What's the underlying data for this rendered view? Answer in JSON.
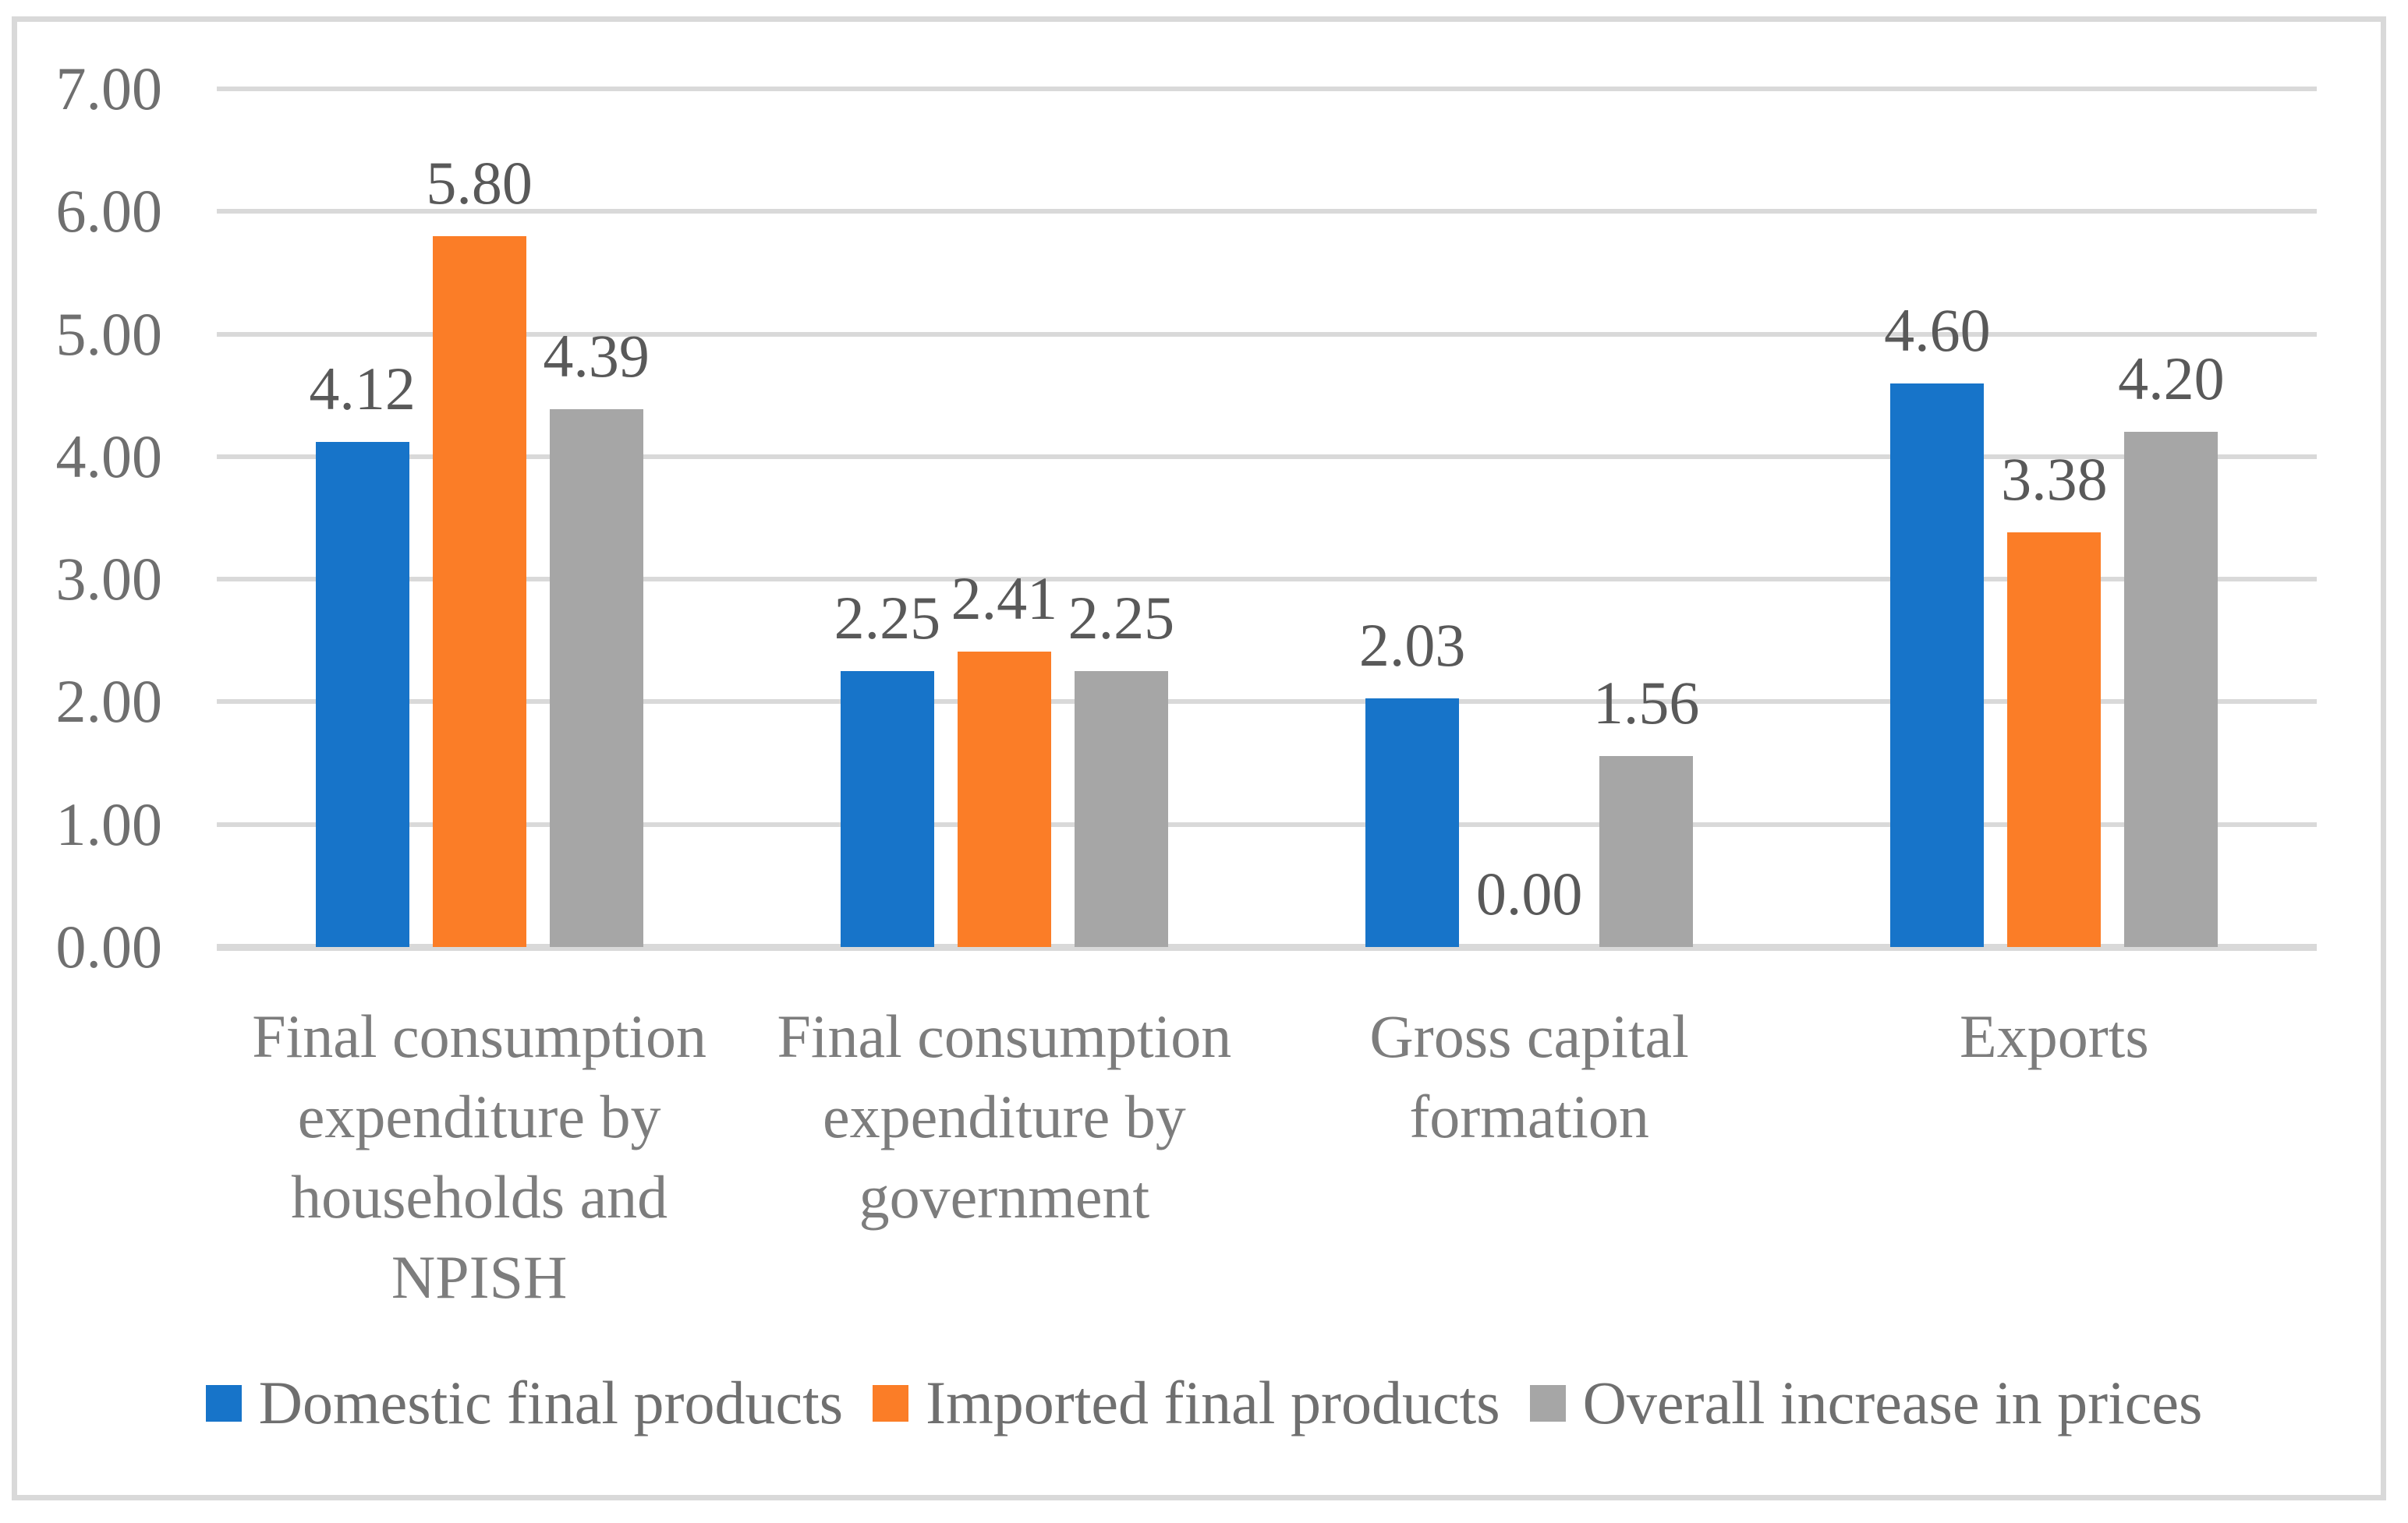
{
  "chart_data": {
    "type": "bar",
    "title": "",
    "categories": [
      "Final consumption expenditure by households and NPISH",
      "Final consumption expenditure by government",
      "Gross capital formation",
      "Exports"
    ],
    "series": [
      {
        "name": "Domestic final products",
        "color": "#1774C9",
        "values": [
          4.12,
          2.25,
          2.03,
          4.6
        ]
      },
      {
        "name": "Imported final products",
        "color": "#FB7D27",
        "values": [
          5.8,
          2.41,
          0.0,
          3.38
        ]
      },
      {
        "name": "Overall increase in prices",
        "color": "#A6A6A6",
        "values": [
          4.39,
          2.25,
          1.56,
          4.2
        ]
      }
    ],
    "data_labels": [
      [
        "4.12",
        "5.80",
        "4.39"
      ],
      [
        "2.25",
        "2.41",
        "2.25"
      ],
      [
        "2.03",
        "0.00",
        "1.56"
      ],
      [
        "4.60",
        "3.38",
        "4.20"
      ]
    ],
    "xlabel": "",
    "ylabel": "",
    "ylim": [
      0,
      7
    ],
    "y_tick_step": 1,
    "y_tick_labels": [
      "0.00",
      "1.00",
      "2.00",
      "3.00",
      "4.00",
      "5.00",
      "6.00",
      "7.00"
    ],
    "grid": true,
    "legend_position": "bottom"
  },
  "style_colors": {
    "gridline": "#D9D9D9",
    "axis_line": "#D9D9D9",
    "frame_border": "#D9D9D9",
    "tick_text": "#6f6f6f",
    "category_text": "#7d7d7d",
    "data_label_text": "#595959",
    "legend_text": "#6f6f6f",
    "background": "#ffffff"
  }
}
